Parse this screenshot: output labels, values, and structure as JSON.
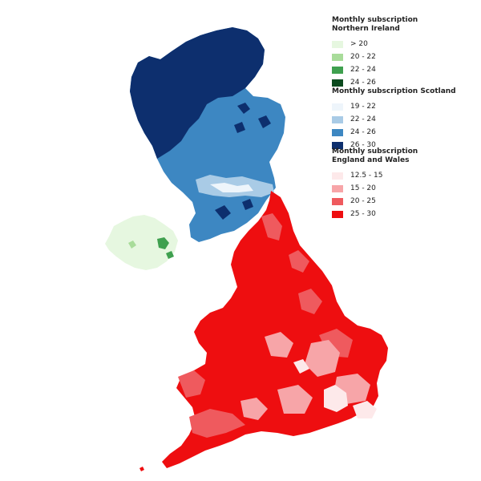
{
  "legends": [
    {
      "id": "ni",
      "title_line1": "Monthly subscription",
      "title_line2": "Northern Ireland",
      "classes": [
        {
          "label": "> 20",
          "color": "#e6f7e0"
        },
        {
          "label": "20 - 22",
          "color": "#a8dc9a"
        },
        {
          "label": "22 - 24",
          "color": "#3fa04f"
        },
        {
          "label": "24 - 26",
          "color": "#0b4a1e"
        }
      ]
    },
    {
      "id": "sc",
      "title_line1": "Monthly subscription Scotland",
      "title_line2": "",
      "classes": [
        {
          "label": "19 - 22",
          "color": "#eef5fb"
        },
        {
          "label": "22 - 24",
          "color": "#a9cbe6"
        },
        {
          "label": "24 - 26",
          "color": "#3d87c2"
        },
        {
          "label": "26 - 30",
          "color": "#0d2f6e"
        }
      ]
    },
    {
      "id": "ew",
      "title_line1": "Monthly subscription",
      "title_line2": "England and Wales",
      "classes": [
        {
          "label": "12.5 - 15",
          "color": "#fde9ea"
        },
        {
          "label": "15 - 20",
          "color": "#f7a5a8"
        },
        {
          "label": "20 - 25",
          "color": "#ef5a5e"
        },
        {
          "label": "25 - 30",
          "color": "#ee0e10"
        }
      ]
    }
  ]
}
